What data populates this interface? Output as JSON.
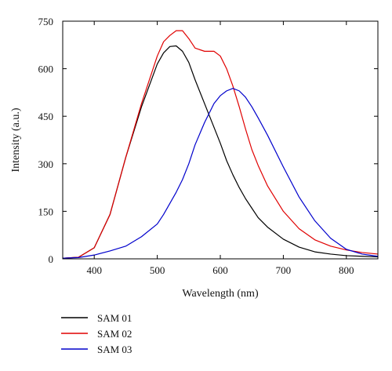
{
  "chart_data": {
    "type": "line",
    "xlabel": "Wavelength (nm)",
    "ylabel": "Intensity (a.u.)",
    "xlim": [
      350,
      850
    ],
    "ylim": [
      0,
      750
    ],
    "x_ticks": [
      "400",
      "500",
      "600",
      "700",
      "800"
    ],
    "y_ticks": [
      "0",
      "150",
      "300",
      "450",
      "600",
      "750"
    ],
    "grid": false,
    "legend_position": "below plot, left",
    "x": [
      350,
      375,
      400,
      425,
      450,
      475,
      500,
      510,
      520,
      530,
      540,
      550,
      560,
      575,
      590,
      600,
      610,
      620,
      630,
      640,
      650,
      660,
      675,
      700,
      725,
      750,
      775,
      800,
      825,
      850
    ],
    "series": [
      {
        "name": "SAM 01",
        "color": "#000000",
        "values": [
          2,
          5,
          35,
          140,
          320,
          480,
          615,
          650,
          670,
          672,
          655,
          620,
          565,
          490,
          415,
          365,
          310,
          265,
          225,
          190,
          160,
          130,
          100,
          62,
          37,
          22,
          15,
          10,
          8,
          6
        ]
      },
      {
        "name": "SAM 02",
        "color": "#e00000",
        "values": [
          2,
          5,
          35,
          140,
          320,
          490,
          640,
          685,
          705,
          720,
          720,
          695,
          665,
          655,
          655,
          640,
          600,
          545,
          480,
          410,
          345,
          295,
          230,
          150,
          95,
          60,
          40,
          28,
          20,
          15
        ]
      },
      {
        "name": "SAM 03",
        "color": "#0000cc",
        "values": [
          2,
          4,
          12,
          25,
          40,
          70,
          110,
          140,
          175,
          210,
          250,
          300,
          360,
          430,
          490,
          515,
          530,
          538,
          530,
          510,
          480,
          445,
          390,
          290,
          195,
          120,
          65,
          30,
          15,
          8
        ]
      }
    ]
  }
}
